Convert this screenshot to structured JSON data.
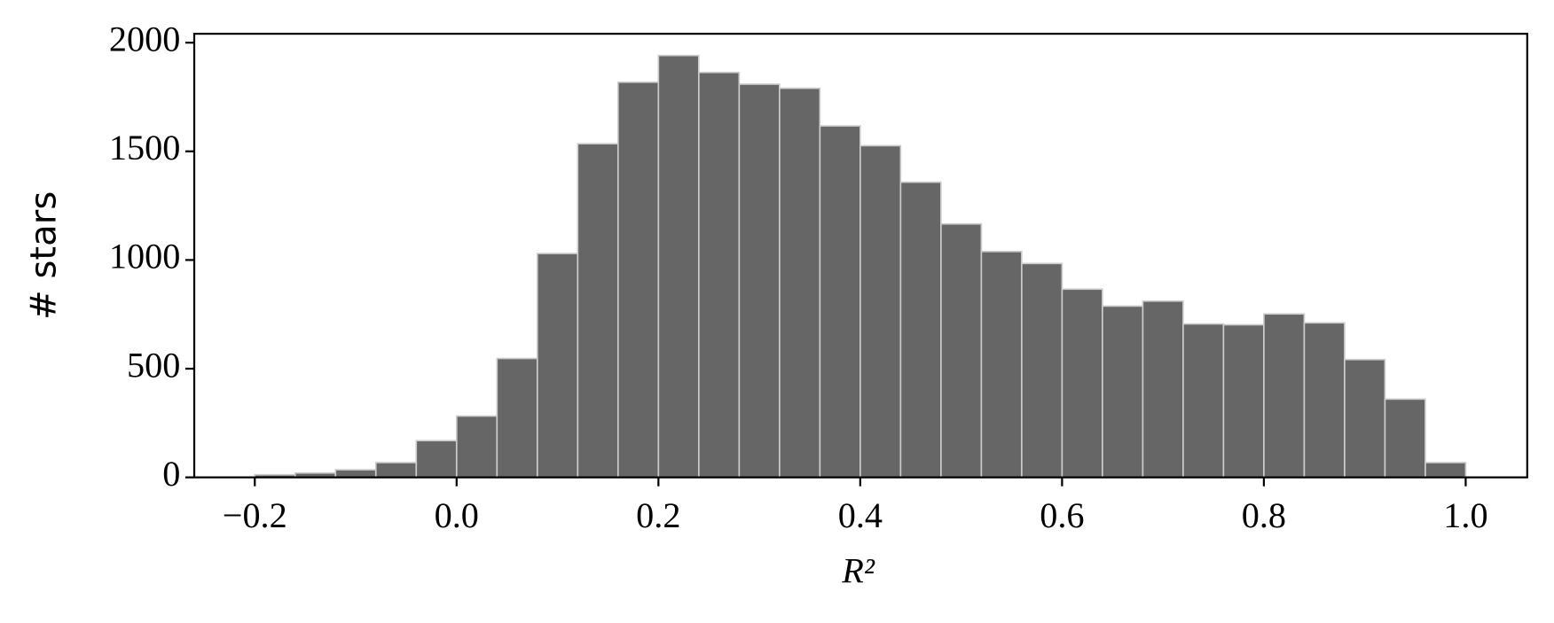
{
  "chart_data": {
    "type": "histogram",
    "x_label": "R²",
    "y_label": "# stars",
    "bins": [
      -0.2,
      -0.16,
      -0.12,
      -0.08,
      -0.04,
      0.0,
      0.04,
      0.08,
      0.12,
      0.16,
      0.2,
      0.24,
      0.28,
      0.32,
      0.36,
      0.4,
      0.44,
      0.48,
      0.52,
      0.56,
      0.6,
      0.64,
      0.68,
      0.72,
      0.76,
      0.8,
      0.84,
      0.88,
      0.92,
      0.96,
      1.0
    ],
    "values": [
      12,
      20,
      35,
      68,
      169,
      282,
      547,
      1030,
      1535,
      1818,
      1941,
      1863,
      1809,
      1790,
      1617,
      1526,
      1358,
      1166,
      1039,
      984,
      866,
      788,
      811,
      706,
      702,
      752,
      711,
      542,
      360,
      68
    ],
    "color": "#666666",
    "edgecolor": "#cccccc",
    "xlim": [
      -0.26,
      1.061
    ],
    "ylim": [
      0,
      2041
    ],
    "xticks": [
      {
        "value": -0.2,
        "label": "−0.2"
      },
      {
        "value": 0,
        "label": "0.0"
      },
      0.2,
      0.4,
      0.6,
      0.8,
      {
        "value": 1,
        "label": "1.0"
      }
    ],
    "yticks": [
      0,
      500,
      1000,
      1500,
      2000
    ]
  }
}
